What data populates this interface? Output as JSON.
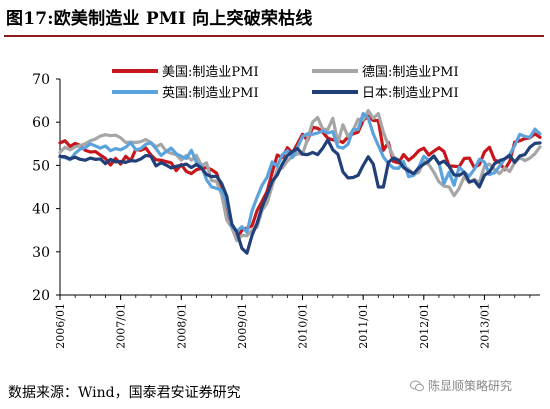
{
  "title": "图17:欧美制造业 PMI 向上突破荣枯线",
  "source": "数据来源：Wind，国泰君安证券研究",
  "watermark": "陈显顺策略研究",
  "chart_data": {
    "type": "line",
    "y_ticks": [
      20,
      30,
      40,
      50,
      60,
      70
    ],
    "ylim": [
      20,
      70
    ],
    "xlim": [
      "2006-01",
      "2013-12"
    ],
    "x_ticks": [
      "2006/01",
      "2007/01",
      "2008/01",
      "2009/01",
      "2010/01",
      "2011/01",
      "2012/01",
      "2013/01"
    ],
    "grid": false,
    "legend_position": "top",
    "series": [
      {
        "name": "美国:制造业PMI",
        "color": "#c8161d",
        "stroke_width": 3.2,
        "start": "2006-01",
        "values": [
          55.2,
          55.7,
          54.4,
          55.1,
          54.6,
          53.5,
          53.1,
          53.2,
          52.4,
          51.6,
          50.1,
          51.6,
          50.3,
          52.1,
          51.1,
          53.7,
          53.5,
          54.0,
          52.4,
          51.3,
          51.2,
          50.9,
          50.6,
          48.8,
          50.2,
          48.6,
          48.1,
          49.0,
          49.3,
          49.5,
          49.0,
          48.2,
          44.6,
          38.7,
          36.4,
          32.9,
          35.0,
          35.5,
          36.0,
          39.5,
          41.7,
          44.0,
          48.4,
          52.4,
          51.8,
          54.1,
          52.9,
          55.0,
          57.2,
          55.8,
          58.8,
          58.6,
          57.7,
          56.3,
          55.9,
          55.8,
          55.3,
          56.6,
          57.3,
          57.7,
          60.4,
          61.4,
          60.4,
          60.4,
          53.5,
          55.3,
          50.9,
          50.6,
          52.5,
          51.2,
          52.1,
          53.4,
          54.0,
          52.4,
          53.3,
          54.1,
          53.2,
          49.9,
          49.8,
          49.7,
          51.6,
          51.7,
          49.5,
          50.2,
          53.1,
          54.2,
          51.3,
          50.7,
          49.0,
          50.9,
          55.4,
          55.7,
          56.2,
          56.4,
          57.3,
          56.5
        ]
      },
      {
        "name": "德国:制造业PMI",
        "color": "#a6a6a6",
        "stroke_width": 3.2,
        "start": "2006-01",
        "values": [
          53.0,
          54.2,
          53.6,
          54.3,
          54.6,
          55.0,
          55.7,
          56.1,
          56.8,
          57.1,
          56.9,
          57.0,
          56.4,
          55.3,
          55.4,
          55.3,
          55.5,
          56.0,
          55.3,
          54.3,
          54.9,
          53.3,
          52.8,
          52.5,
          51.2,
          52.3,
          51.2,
          52.3,
          50.0,
          50.6,
          46.5,
          46.3,
          43.2,
          37.4,
          35.6,
          32.6,
          33.8,
          33.7,
          35.0,
          35.7,
          39.6,
          41.3,
          45.3,
          49.1,
          49.4,
          51.0,
          52.1,
          52.7,
          52.6,
          56.1,
          60.0,
          61.1,
          58.4,
          58.3,
          60.9,
          55.3,
          59.4,
          56.7,
          58.1,
          60.7,
          60.5,
          62.7,
          60.9,
          62.0,
          57.7,
          54.6,
          52.0,
          51.2,
          49.9,
          49.1,
          47.9,
          48.4,
          51.0,
          50.2,
          48.4,
          46.2,
          45.2,
          45.0,
          43.0,
          44.7,
          47.4,
          46.0,
          46.8,
          46.0,
          49.8,
          50.3,
          49.0,
          48.1,
          49.4,
          48.6,
          50.7,
          51.8,
          51.1,
          51.7,
          52.7,
          54.3
        ]
      },
      {
        "name": "英国:制造业PMI",
        "color": "#5ba3dd",
        "stroke_width": 3.2,
        "start": "2006-01",
        "values": [
          52.0,
          51.8,
          51.3,
          52.8,
          53.8,
          54.1,
          55.0,
          54.5,
          54.0,
          54.5,
          53.4,
          53.9,
          53.6,
          54.2,
          55.3,
          53.6,
          53.9,
          54.9,
          55.2,
          53.9,
          52.3,
          53.2,
          54.0,
          52.7,
          52.1,
          51.6,
          53.5,
          50.7,
          49.8,
          46.7,
          45.0,
          44.7,
          44.2,
          41.5,
          35.9,
          34.7,
          35.8,
          34.5,
          39.5,
          42.6,
          45.4,
          47.3,
          50.8,
          49.8,
          52.5,
          53.4,
          51.8,
          54.1,
          56.7,
          57.3,
          57.2,
          57.5,
          58.0,
          57.5,
          57.8,
          54.3,
          54.0,
          54.9,
          58.3,
          58.3,
          62.0,
          61.0,
          57.3,
          54.6,
          52.0,
          50.4,
          49.4,
          49.3,
          50.9,
          47.4,
          47.7,
          49.6,
          52.1,
          51.2,
          52.1,
          50.5,
          45.8,
          48.4,
          45.4,
          49.6,
          48.4,
          47.5,
          49.1,
          51.4,
          50.8,
          47.9,
          48.3,
          49.8,
          51.5,
          52.5,
          54.6,
          57.2,
          56.7,
          56.5,
          58.4,
          57.3
        ]
      },
      {
        "name": "日本:制造业PMI",
        "color": "#213f79",
        "stroke_width": 3.2,
        "start": "2006-01",
        "values": [
          52.1,
          52.0,
          51.5,
          51.9,
          51.4,
          51.2,
          51.7,
          51.4,
          51.5,
          50.4,
          51.4,
          50.8,
          50.9,
          50.7,
          51.1,
          51.0,
          51.5,
          52.3,
          52.1,
          49.9,
          50.6,
          50.1,
          49.4,
          49.8,
          50.0,
          50.3,
          49.5,
          50.2,
          49.4,
          47.9,
          47.4,
          47.5,
          45.8,
          42.9,
          36.4,
          34.6,
          30.8,
          29.7,
          33.8,
          36.6,
          40.4,
          43.3,
          46.3,
          47.8,
          50.3,
          52.3,
          53.2,
          53.9,
          52.6,
          52.5,
          53.0,
          52.5,
          54.0,
          55.9,
          53.6,
          52.6,
          48.5,
          47.1,
          47.2,
          47.7,
          50.0,
          52.0,
          50.3,
          45.0,
          45.0,
          50.7,
          51.7,
          51.2,
          49.5,
          48.7,
          48.1,
          49.4,
          50.3,
          51.0,
          52.2,
          50.4,
          51.0,
          49.8,
          47.8,
          47.7,
          48.4,
          46.2,
          46.5,
          45.0,
          47.7,
          48.5,
          50.4,
          51.1,
          51.5,
          52.3,
          50.7,
          52.2,
          52.5,
          54.2,
          55.1,
          55.2
        ]
      }
    ]
  }
}
